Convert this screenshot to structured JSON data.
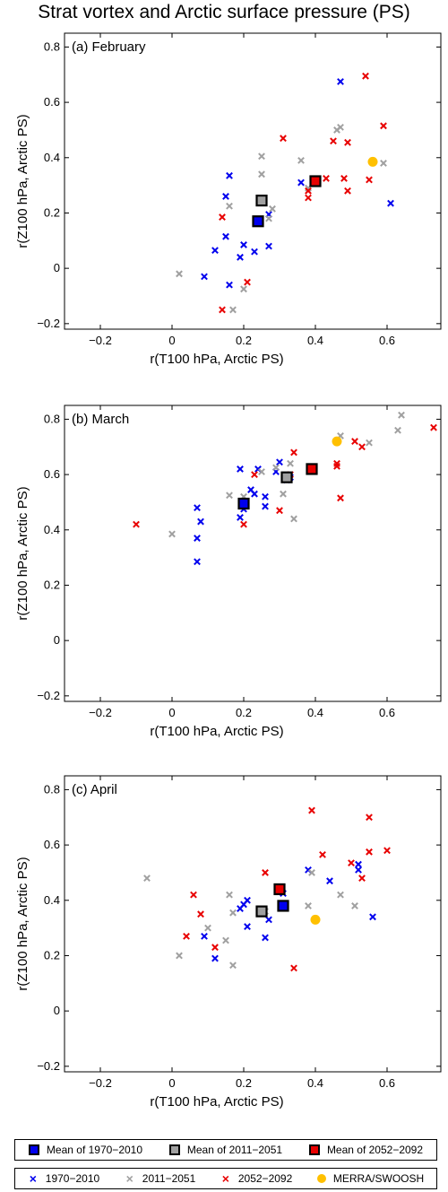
{
  "figure_title": "Strat vortex and Arctic surface pressure (PS)",
  "colors": {
    "c1970": "#0000ee",
    "c2011": "#a0a0a0",
    "c2052": "#e80000",
    "merra": "#ffc000"
  },
  "legend": {
    "means": [
      "Mean of 1970−2010",
      "Mean of 2011−2051",
      "Mean of 2052−2092"
    ],
    "series": [
      "1970−2010",
      "2011−2051",
      "2052−2092",
      "MERRA/SWOOSH"
    ]
  },
  "chart_data": [
    {
      "type": "scatter",
      "title": "(a) February",
      "xlabel": "r(T100 hPa, Arctic PS)",
      "ylabel": "r(Z100 hPa, Arctic PS)",
      "xlim": [
        -0.3,
        0.75
      ],
      "ylim": [
        -0.22,
        0.85
      ],
      "xticks": [
        "−0.2",
        "0",
        "0.2",
        "0.4",
        "0.6"
      ],
      "yticks": [
        "−0.2",
        "0",
        "0.2",
        "0.4",
        "0.6",
        "0.8"
      ],
      "series": [
        {
          "name": "1970−2010",
          "marker": "x",
          "color": "c1970",
          "points": [
            [
              0.47,
              0.675
            ],
            [
              0.16,
              0.335
            ],
            [
              0.15,
              0.26
            ],
            [
              0.15,
              0.115
            ],
            [
              0.12,
              0.065
            ],
            [
              0.09,
              -0.03
            ],
            [
              0.16,
              -0.06
            ],
            [
              0.19,
              0.04
            ],
            [
              0.2,
              0.085
            ],
            [
              0.23,
              0.06
            ],
            [
              0.27,
              0.08
            ],
            [
              0.27,
              0.195
            ],
            [
              0.36,
              0.31
            ],
            [
              0.61,
              0.235
            ]
          ]
        },
        {
          "name": "2011−2051",
          "marker": "x",
          "color": "c2011",
          "points": [
            [
              0.02,
              -0.02
            ],
            [
              0.17,
              -0.15
            ],
            [
              0.2,
              -0.075
            ],
            [
              0.16,
              0.225
            ],
            [
              0.25,
              0.405
            ],
            [
              0.25,
              0.34
            ],
            [
              0.28,
              0.215
            ],
            [
              0.27,
              0.18
            ],
            [
              0.36,
              0.39
            ],
            [
              0.38,
              0.29
            ],
            [
              0.46,
              0.5
            ],
            [
              0.47,
              0.51
            ],
            [
              0.59,
              0.38
            ]
          ]
        },
        {
          "name": "2052−2092",
          "marker": "x",
          "color": "c2052",
          "points": [
            [
              0.14,
              -0.15
            ],
            [
              0.14,
              0.185
            ],
            [
              0.21,
              -0.05
            ],
            [
              0.31,
              0.47
            ],
            [
              0.38,
              0.255
            ],
            [
              0.38,
              0.28
            ],
            [
              0.4,
              0.31
            ],
            [
              0.43,
              0.325
            ],
            [
              0.45,
              0.46
            ],
            [
              0.48,
              0.325
            ],
            [
              0.49,
              0.455
            ],
            [
              0.49,
              0.28
            ],
            [
              0.54,
              0.695
            ],
            [
              0.55,
              0.32
            ],
            [
              0.59,
              0.515
            ]
          ]
        },
        {
          "name": "MERRA/SWOOSH",
          "marker": "dot",
          "color": "merra",
          "points": [
            [
              0.56,
              0.385
            ]
          ]
        },
        {
          "name": "Mean of 1970−2010",
          "marker": "square",
          "color": "c1970",
          "points": [
            [
              0.24,
              0.17
            ]
          ]
        },
        {
          "name": "Mean of 2011−2051",
          "marker": "square",
          "color": "c2011",
          "points": [
            [
              0.25,
              0.245
            ]
          ]
        },
        {
          "name": "Mean of 2052−2092",
          "marker": "square",
          "color": "c2052",
          "points": [
            [
              0.4,
              0.315
            ]
          ]
        }
      ]
    },
    {
      "type": "scatter",
      "title": "(b) March",
      "xlabel": "r(T100 hPa, Arctic PS)",
      "ylabel": "r(Z100 hPa, Arctic PS)",
      "xlim": [
        -0.3,
        0.75
      ],
      "ylim": [
        -0.22,
        0.85
      ],
      "xticks": [
        "−0.2",
        "0",
        "0.2",
        "0.4",
        "0.6"
      ],
      "yticks": [
        "−0.2",
        "0",
        "0.2",
        "0.4",
        "0.6",
        "0.8"
      ],
      "series": [
        {
          "name": "1970−2010",
          "marker": "x",
          "color": "c1970",
          "points": [
            [
              0.07,
              0.48
            ],
            [
              0.07,
              0.37
            ],
            [
              0.07,
              0.285
            ],
            [
              0.08,
              0.43
            ],
            [
              0.19,
              0.62
            ],
            [
              0.19,
              0.445
            ],
            [
              0.2,
              0.475
            ],
            [
              0.22,
              0.545
            ],
            [
              0.23,
              0.53
            ],
            [
              0.24,
              0.62
            ],
            [
              0.26,
              0.52
            ],
            [
              0.26,
              0.485
            ],
            [
              0.29,
              0.61
            ],
            [
              0.3,
              0.645
            ],
            [
              0.32,
              0.58
            ],
            [
              0.33,
              0.59
            ]
          ]
        },
        {
          "name": "2011−2051",
          "marker": "x",
          "color": "c2011",
          "points": [
            [
              0,
              0.385
            ],
            [
              0.16,
              0.525
            ],
            [
              0.2,
              0.52
            ],
            [
              0.25,
              0.61
            ],
            [
              0.29,
              0.625
            ],
            [
              0.31,
              0.53
            ],
            [
              0.33,
              0.64
            ],
            [
              0.34,
              0.44
            ],
            [
              0.47,
              0.74
            ],
            [
              0.55,
              0.715
            ],
            [
              0.63,
              0.76
            ],
            [
              0.64,
              0.815
            ]
          ]
        },
        {
          "name": "2052−2092",
          "marker": "x",
          "color": "c2052",
          "points": [
            [
              -0.1,
              0.42
            ],
            [
              0.2,
              0.42
            ],
            [
              0.23,
              0.6
            ],
            [
              0.3,
              0.47
            ],
            [
              0.33,
              0.6
            ],
            [
              0.34,
              0.68
            ],
            [
              0.46,
              0.64
            ],
            [
              0.46,
              0.63
            ],
            [
              0.47,
              0.515
            ],
            [
              0.51,
              0.72
            ],
            [
              0.53,
              0.7
            ],
            [
              0.73,
              0.77
            ]
          ]
        },
        {
          "name": "MERRA/SWOOSH",
          "marker": "dot",
          "color": "merra",
          "points": [
            [
              0.46,
              0.72
            ]
          ]
        },
        {
          "name": "Mean of 1970−2010",
          "marker": "square",
          "color": "c1970",
          "points": [
            [
              0.2,
              0.495
            ]
          ]
        },
        {
          "name": "Mean of 2011−2051",
          "marker": "square",
          "color": "c2011",
          "points": [
            [
              0.32,
              0.59
            ]
          ]
        },
        {
          "name": "Mean of 2052−2092",
          "marker": "square",
          "color": "c2052",
          "points": [
            [
              0.39,
              0.62
            ]
          ]
        }
      ]
    },
    {
      "type": "scatter",
      "title": "(c) April",
      "xlabel": "r(T100 hPa, Arctic PS)",
      "ylabel": "r(Z100 hPa, Arctic PS)",
      "xlim": [
        -0.3,
        0.75
      ],
      "ylim": [
        -0.22,
        0.85
      ],
      "xticks": [
        "−0.2",
        "0",
        "0.2",
        "0.4",
        "0.6"
      ],
      "yticks": [
        "−0.2",
        "0",
        "0.2",
        "0.4",
        "0.6",
        "0.8"
      ],
      "series": [
        {
          "name": "1970−2010",
          "marker": "x",
          "color": "c1970",
          "points": [
            [
              0.09,
              0.27
            ],
            [
              0.12,
              0.19
            ],
            [
              0.19,
              0.37
            ],
            [
              0.2,
              0.385
            ],
            [
              0.21,
              0.4
            ],
            [
              0.21,
              0.305
            ],
            [
              0.26,
              0.265
            ],
            [
              0.27,
              0.33
            ],
            [
              0.31,
              0.425
            ],
            [
              0.38,
              0.51
            ],
            [
              0.44,
              0.47
            ],
            [
              0.52,
              0.53
            ],
            [
              0.52,
              0.51
            ],
            [
              0.56,
              0.34
            ]
          ]
        },
        {
          "name": "2011−2051",
          "marker": "x",
          "color": "c2011",
          "points": [
            [
              -0.07,
              0.48
            ],
            [
              0.02,
              0.2
            ],
            [
              0.1,
              0.3
            ],
            [
              0.15,
              0.255
            ],
            [
              0.16,
              0.42
            ],
            [
              0.17,
              0.165
            ],
            [
              0.17,
              0.355
            ],
            [
              0.26,
              0.36
            ],
            [
              0.38,
              0.38
            ],
            [
              0.39,
              0.5
            ],
            [
              0.47,
              0.42
            ],
            [
              0.51,
              0.38
            ]
          ]
        },
        {
          "name": "2052−2092",
          "marker": "x",
          "color": "c2052",
          "points": [
            [
              0.04,
              0.27
            ],
            [
              0.06,
              0.42
            ],
            [
              0.08,
              0.35
            ],
            [
              0.12,
              0.23
            ],
            [
              0.26,
              0.5
            ],
            [
              0.34,
              0.155
            ],
            [
              0.39,
              0.725
            ],
            [
              0.42,
              0.565
            ],
            [
              0.5,
              0.535
            ],
            [
              0.53,
              0.48
            ],
            [
              0.55,
              0.575
            ],
            [
              0.55,
              0.7
            ],
            [
              0.6,
              0.58
            ]
          ]
        },
        {
          "name": "MERRA/SWOOSH",
          "marker": "dot",
          "color": "merra",
          "points": [
            [
              0.4,
              0.33
            ]
          ]
        },
        {
          "name": "Mean of 1970−2010",
          "marker": "square",
          "color": "c1970",
          "points": [
            [
              0.31,
              0.38
            ]
          ]
        },
        {
          "name": "Mean of 2011−2051",
          "marker": "square",
          "color": "c2011",
          "points": [
            [
              0.25,
              0.36
            ]
          ]
        },
        {
          "name": "Mean of 2052−2092",
          "marker": "square",
          "color": "c2052",
          "points": [
            [
              0.3,
              0.44
            ]
          ]
        }
      ]
    }
  ]
}
